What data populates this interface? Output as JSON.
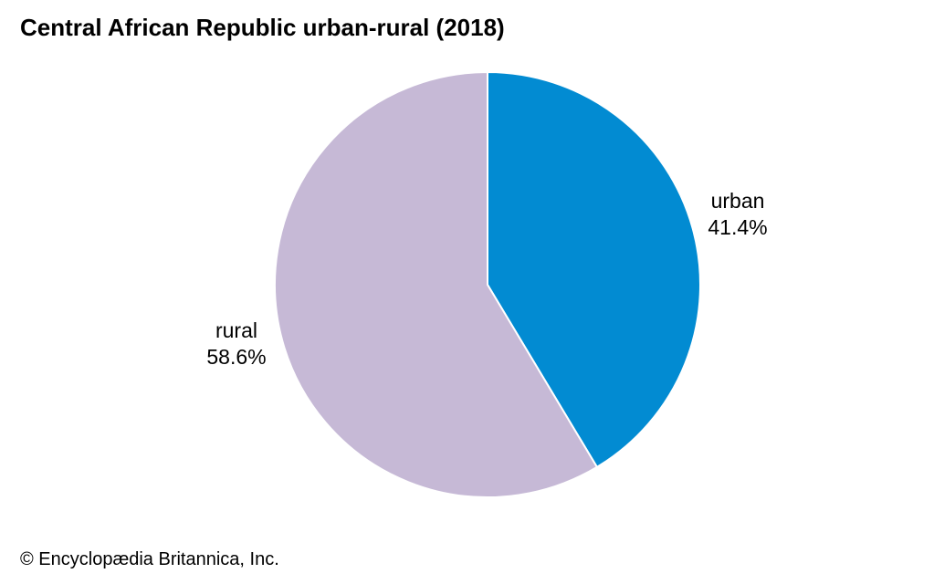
{
  "title": "Central African Republic urban-rural (2018)",
  "credit": "© Encyclopædia Britannica, Inc.",
  "colors": {
    "urban": "#028bd2",
    "rural": "#c6b9d6",
    "slice_border": "#ffffff"
  },
  "chart_data": {
    "type": "pie",
    "title": "Central African Republic urban-rural (2018)",
    "slices": [
      {
        "label": "urban",
        "value": 41.4,
        "value_label": "41.4%",
        "color": "#028bd2"
      },
      {
        "label": "rural",
        "value": 58.6,
        "value_label": "58.6%",
        "color": "#c6b9d6"
      }
    ],
    "start": "12 o'clock",
    "direction": "clockwise",
    "legend": "none"
  }
}
